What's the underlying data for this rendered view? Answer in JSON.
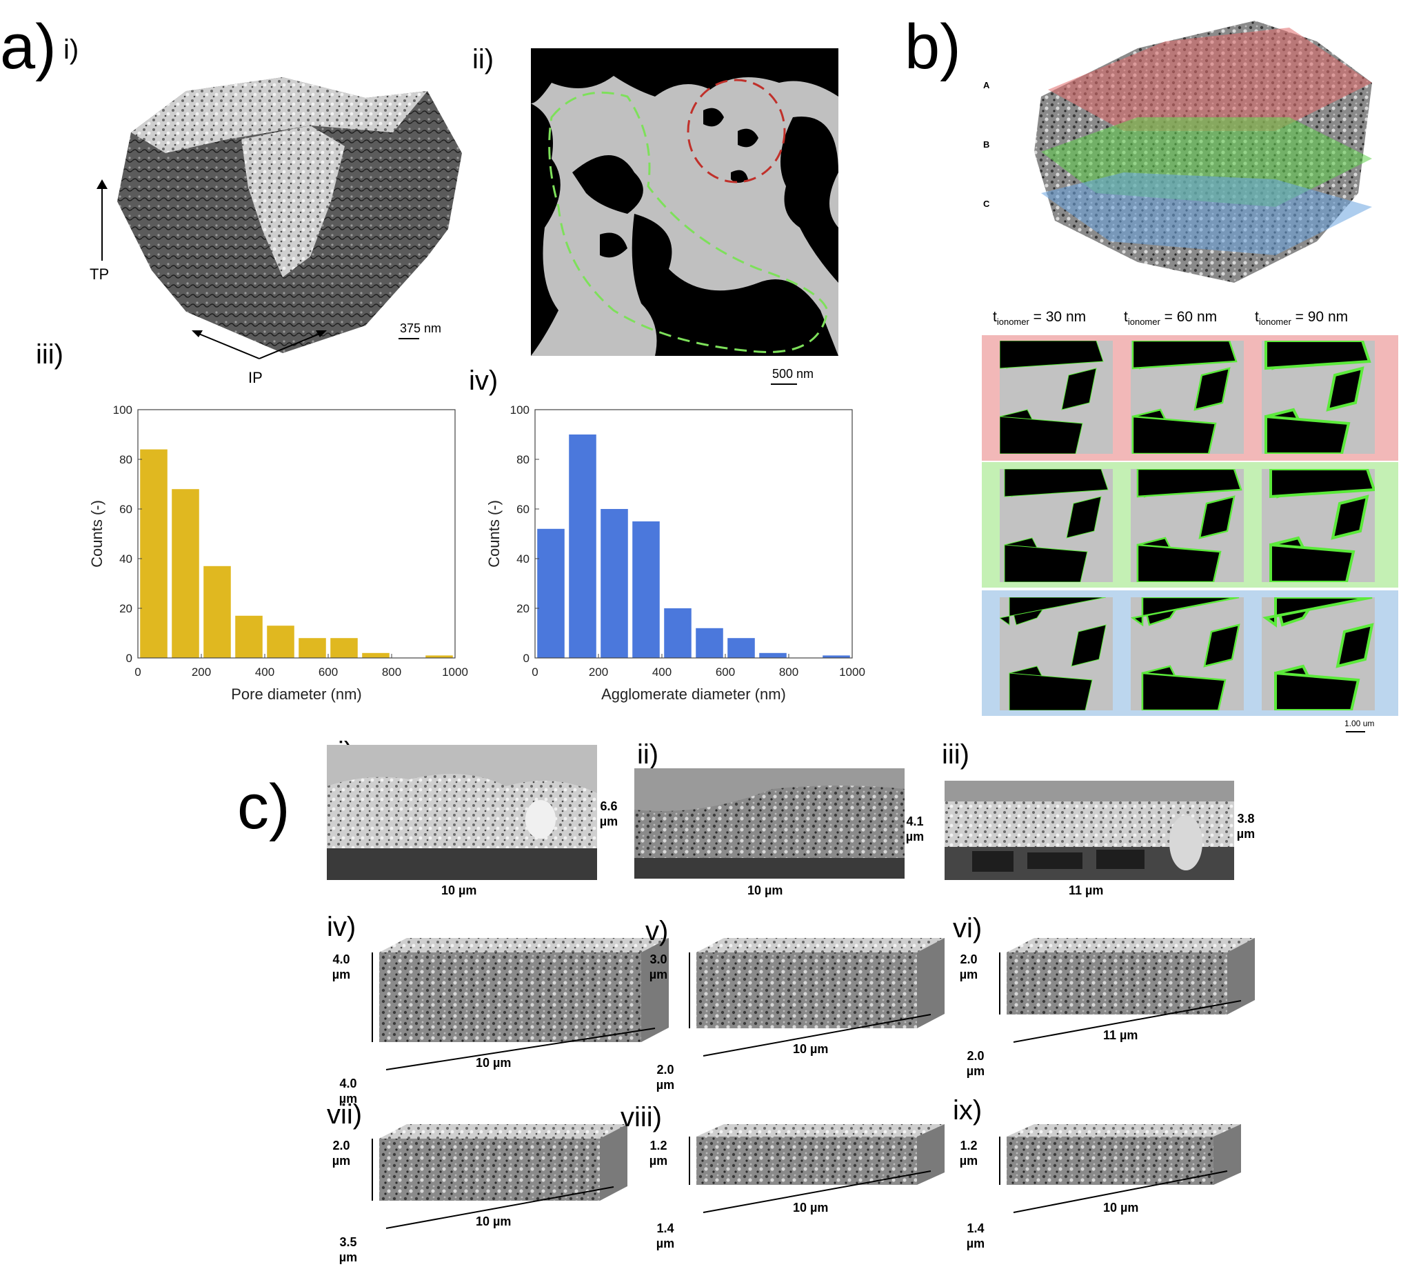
{
  "panel_a": {
    "letter": "a)",
    "sub_i": "i)",
    "sub_ii": "ii)",
    "sub_iii": "iii)",
    "sub_iv": "iv)",
    "tp_label": "TP",
    "ip_label": "IP",
    "scale_i": "375 nm",
    "scale_ii": "500 nm"
  },
  "panel_b": {
    "letter": "b)",
    "layers": [
      "A",
      "B",
      "C"
    ],
    "col_headers": [
      {
        "t": "t",
        "sub": "ionomer",
        "rest": " = 30 nm"
      },
      {
        "t": "t",
        "sub": "ionomer",
        "rest": " = 60 nm"
      },
      {
        "t": "t",
        "sub": "ionomer",
        "rest": " = 90 nm"
      }
    ],
    "scale": "1.00 um",
    "row_colors": [
      "#f2b8b8",
      "#c4f0b4",
      "#bcd6ee"
    ]
  },
  "panel_c": {
    "letter": "c)",
    "sem": [
      {
        "label": "i)",
        "height": "6.6\nµm",
        "width": "10 µm"
      },
      {
        "label": "ii)",
        "height": "4.1\nµm",
        "width": "10 µm"
      },
      {
        "label": "iii)",
        "height": "3.8\nµm",
        "width": "11 µm"
      }
    ],
    "blocks": [
      {
        "label": "iv)",
        "h": "4.0\nµm",
        "d": "4.0\nµm",
        "w": "10 µm"
      },
      {
        "label": "v)",
        "h": "3.0\nµm",
        "d": "2.0\nµm",
        "w": "10 µm"
      },
      {
        "label": "vi)",
        "h": "2.0\nµm",
        "d": "2.0\nµm",
        "w": "11 µm"
      },
      {
        "label": "vii)",
        "h": "2.0\nµm",
        "d": "3.5\nµm",
        "w": "10 µm"
      },
      {
        "label": "viii)",
        "h": "1.2\nµm",
        "d": "1.4\nµm",
        "w": "10 µm"
      },
      {
        "label": "ix)",
        "h": "1.2\nµm",
        "d": "1.4\nµm",
        "w": "10 µm"
      }
    ]
  },
  "chart_data": [
    {
      "type": "bar",
      "categories": [
        50,
        150,
        250,
        350,
        450,
        550,
        650,
        750,
        850,
        950
      ],
      "values": [
        84,
        68,
        37,
        17,
        13,
        8,
        8,
        2,
        0,
        1
      ],
      "xlabel": "Pore diameter (nm)",
      "ylabel": "Counts (-)",
      "xlim": [
        0,
        1000
      ],
      "ylim": [
        0,
        100
      ],
      "xticks": [
        0,
        200,
        400,
        600,
        800,
        1000
      ],
      "yticks": [
        0,
        20,
        40,
        60,
        80,
        100
      ],
      "color": "#e0b820"
    },
    {
      "type": "bar",
      "categories": [
        50,
        150,
        250,
        350,
        450,
        550,
        650,
        750,
        850,
        950
      ],
      "values": [
        52,
        90,
        60,
        55,
        20,
        12,
        8,
        2,
        0,
        1
      ],
      "xlabel": "Agglomerate diameter (nm)",
      "ylabel": "Counts (-)",
      "xlim": [
        0,
        1000
      ],
      "ylim": [
        0,
        100
      ],
      "xticks": [
        0,
        200,
        400,
        600,
        800,
        1000
      ],
      "yticks": [
        0,
        20,
        40,
        60,
        80,
        100
      ],
      "color": "#4b78dc"
    }
  ]
}
